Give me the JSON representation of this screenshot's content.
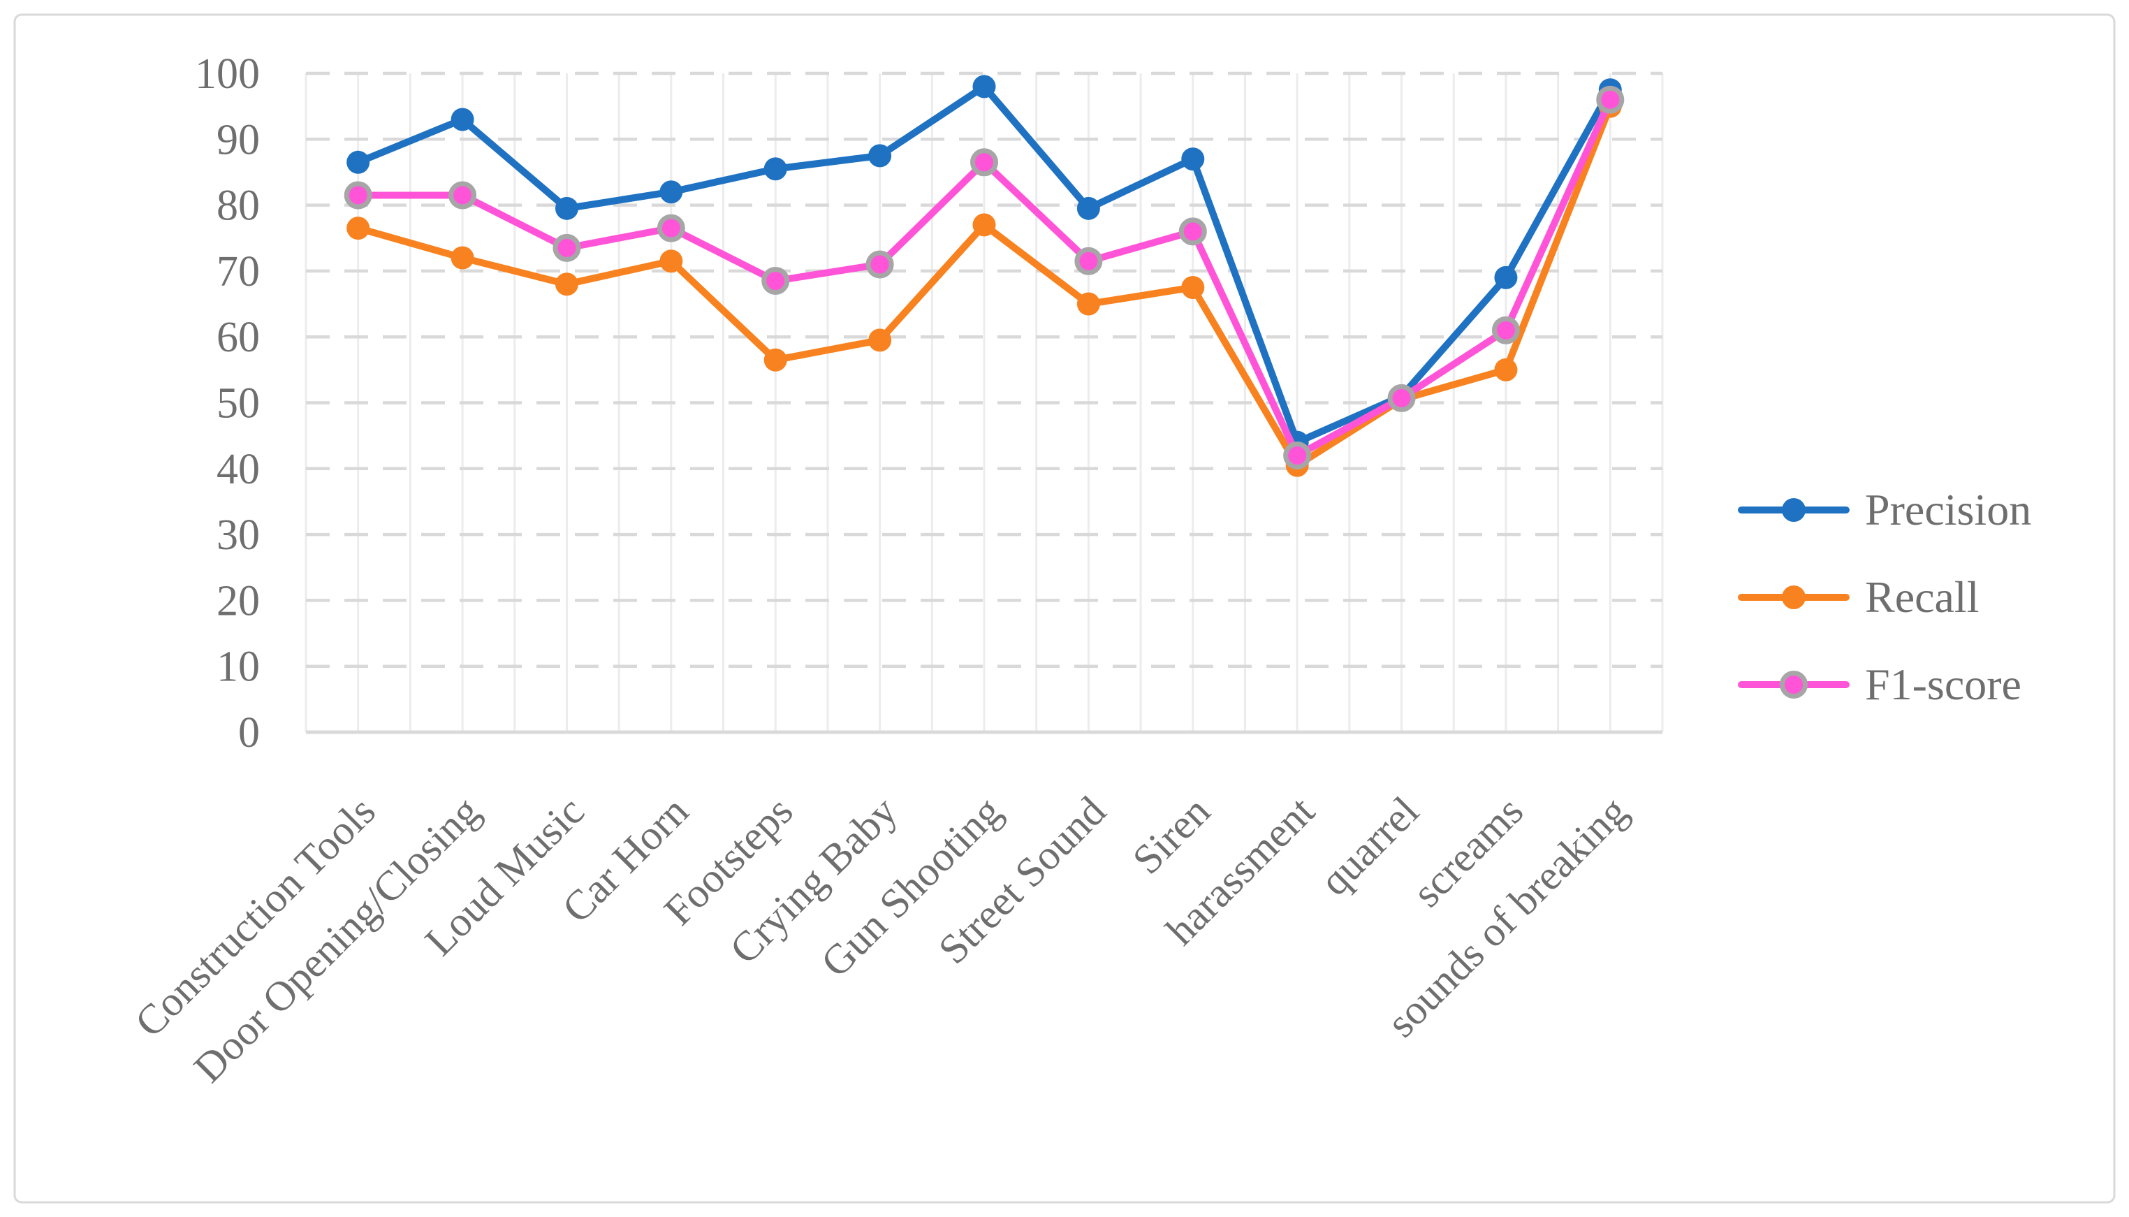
{
  "figure": {
    "background": "#FFFFFF",
    "border_color": "#D9D9D9"
  },
  "chart_data": {
    "type": "line",
    "title": "",
    "xlabel": "",
    "ylabel": "",
    "categories": [
      "Construction Tools",
      "Door Opening/Closing",
      "Loud Music",
      "Car Horn",
      "Footsteps",
      "Crying Baby",
      "Gun Shooting",
      "Street Sound",
      "Siren",
      "harassment",
      "quarrel",
      "screams",
      "sounds of breaking"
    ],
    "series": [
      {
        "name": "Precision",
        "color": "#1F72C2",
        "marker": "circle",
        "values": [
          86.5,
          93,
          79.5,
          82,
          85.5,
          87.5,
          98,
          79.5,
          87,
          44,
          51,
          69,
          97.5
        ]
      },
      {
        "name": "Recall",
        "color": "#F8821F",
        "marker": "circle",
        "values": [
          76.5,
          72,
          68,
          71.5,
          56.5,
          59.5,
          77,
          65,
          67.5,
          40.5,
          50.5,
          55,
          95
        ]
      },
      {
        "name": "F1-score",
        "color": "#FF54D8",
        "marker": "circle-ring",
        "marker_ring_color": "#A6A6A6",
        "values": [
          81.5,
          81.5,
          73.5,
          76.5,
          68.5,
          71,
          86.5,
          71.5,
          76,
          42,
          50.7,
          61,
          96
        ]
      }
    ],
    "ylim": [
      0,
      100
    ],
    "y_ticks": [
      0,
      10,
      20,
      30,
      40,
      50,
      60,
      70,
      80,
      90,
      100
    ],
    "x_tick_rotation_deg": -45,
    "grid": {
      "horizontal_style": "dashed",
      "horizontal_color": "#D9D9D9",
      "vertical_style": "solid",
      "vertical_color": "#ECECEC",
      "axis_line_color": "#D9D9D9"
    },
    "legend_position": "right-middle",
    "axis_text_color": "#6E6E6E"
  }
}
